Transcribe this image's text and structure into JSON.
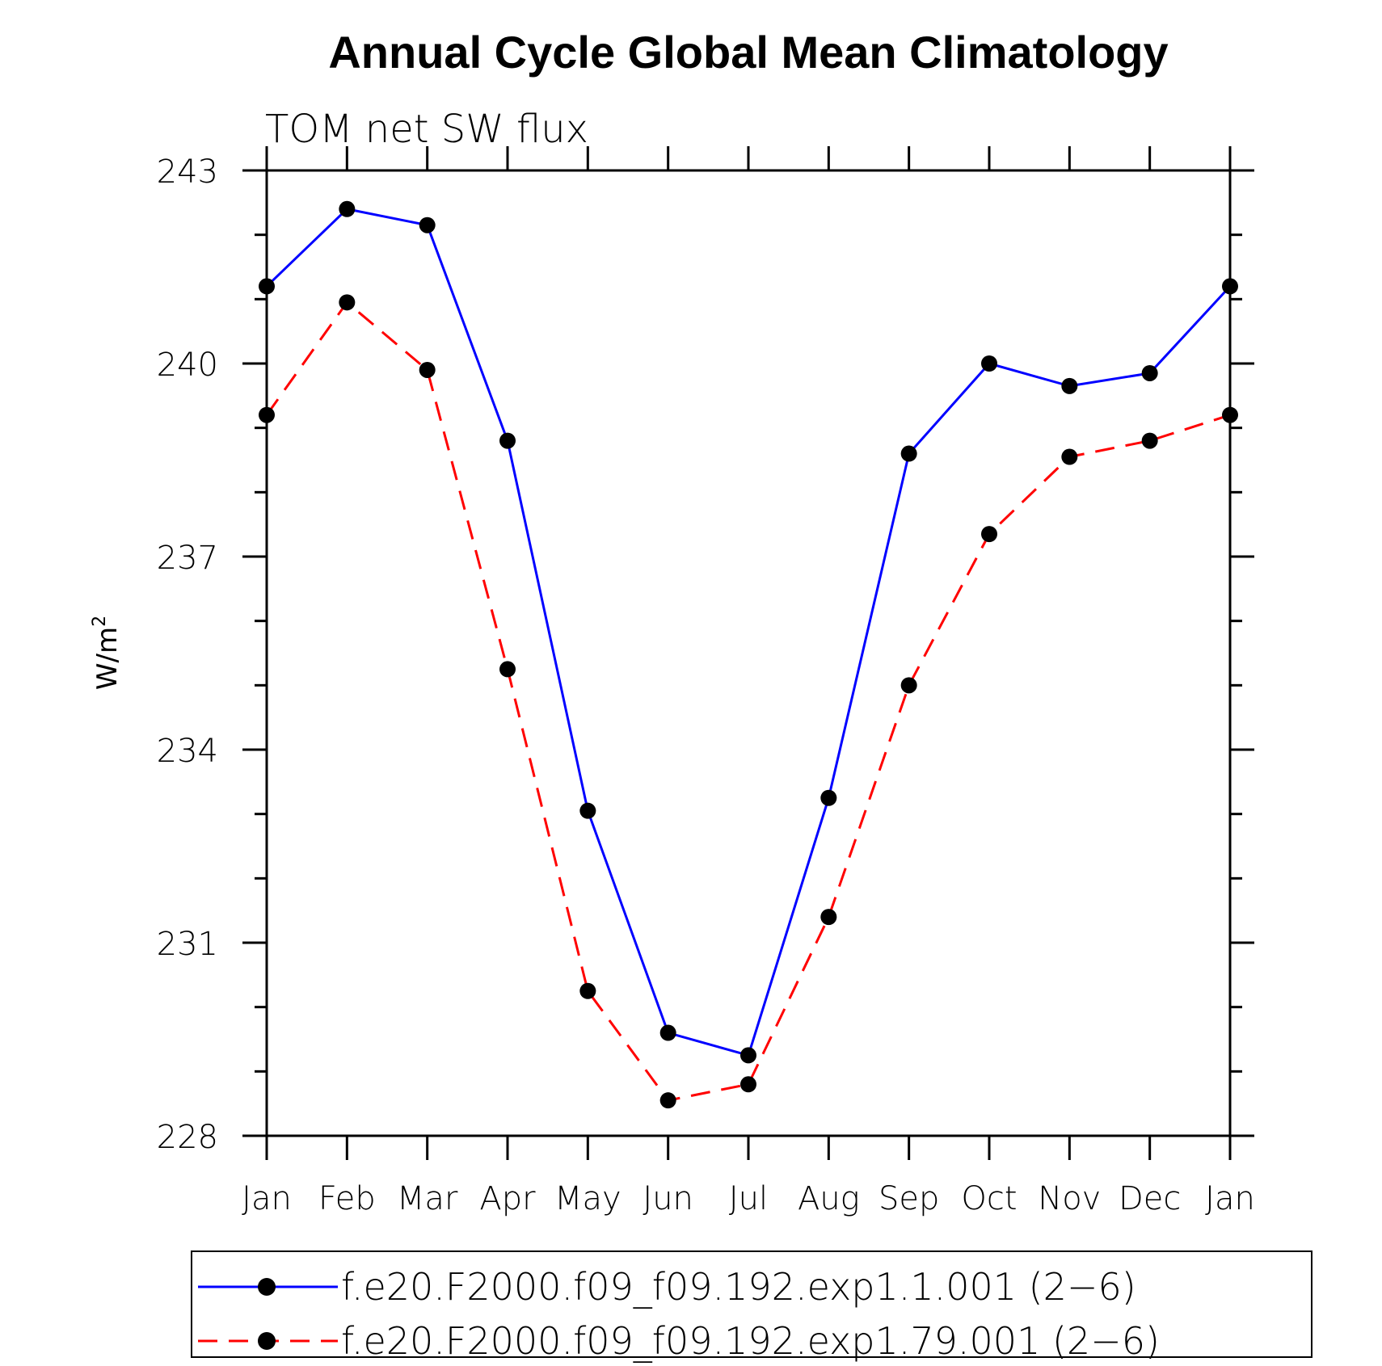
{
  "chart_data": {
    "type": "line",
    "title": "Annual Cycle Global Mean Climatology",
    "subtitle": "TOM net SW flux",
    "ylabel": "W/m",
    "ylabel_superscript": "2",
    "xlabel": "",
    "categories": [
      "Jan",
      "Feb",
      "Mar",
      "Apr",
      "May",
      "Jun",
      "Jul",
      "Aug",
      "Sep",
      "Oct",
      "Nov",
      "Dec",
      "Jan"
    ],
    "ylim": [
      228,
      243
    ],
    "yticks": [
      228,
      231,
      234,
      237,
      240,
      243
    ],
    "series": [
      {
        "name": "f.e20.F2000.f09_f09.192.exp1.1.001 (2−6)",
        "color": "#0000ff",
        "style": "solid",
        "values": [
          241.2,
          242.4,
          242.15,
          238.8,
          233.05,
          229.6,
          229.25,
          233.25,
          238.6,
          240.0,
          239.65,
          239.85,
          241.2
        ]
      },
      {
        "name": "f.e20.F2000.f09_f09.192.exp1.79.001 (2−6)",
        "color": "#ff0000",
        "style": "dashed",
        "values": [
          239.2,
          240.95,
          239.9,
          235.25,
          230.25,
          228.55,
          228.8,
          231.4,
          235.0,
          237.35,
          238.55,
          238.8,
          239.2
        ]
      }
    ],
    "legend": "bottom"
  }
}
